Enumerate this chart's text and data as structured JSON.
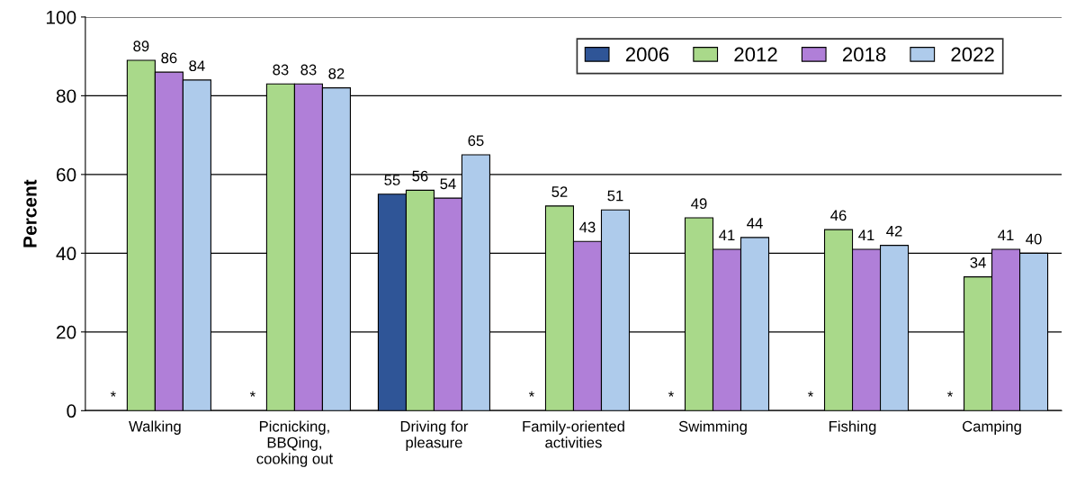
{
  "chart_data": {
    "type": "bar",
    "ylabel": "Percent",
    "categories": [
      "Walking",
      "Picnicking,\nBBQing,\ncooking out",
      "Driving for\npleasure",
      "Family-oriented\nactivities",
      "Swimming",
      "Fishing",
      "Camping"
    ],
    "series": [
      {
        "name": "2006",
        "color": "#2f5597",
        "values": [
          null,
          null,
          55,
          null,
          null,
          null,
          null
        ],
        "value_labels": [
          "*",
          "*",
          "55",
          "*",
          "*",
          "*",
          "*"
        ]
      },
      {
        "name": "2012",
        "color": "#a9d98a",
        "values": [
          89,
          83,
          56,
          52,
          49,
          46,
          34
        ],
        "value_labels": [
          "89",
          "83",
          "56",
          "52",
          "49",
          "46",
          "34"
        ]
      },
      {
        "name": "2018",
        "color": "#b07fd8",
        "values": [
          86,
          83,
          54,
          43,
          41,
          41,
          41
        ],
        "value_labels": [
          "86",
          "83",
          "54",
          "43",
          "41",
          "41",
          "41"
        ]
      },
      {
        "name": "2022",
        "color": "#aecbeb",
        "values": [
          84,
          82,
          65,
          51,
          44,
          42,
          40
        ],
        "value_labels": [
          "84",
          "82",
          "65",
          "51",
          "44",
          "42",
          "40"
        ]
      }
    ],
    "ylim": [
      0,
      100
    ],
    "yticks": [
      0,
      20,
      40,
      60,
      80,
      100
    ],
    "grid": "y",
    "legend": "top right"
  }
}
